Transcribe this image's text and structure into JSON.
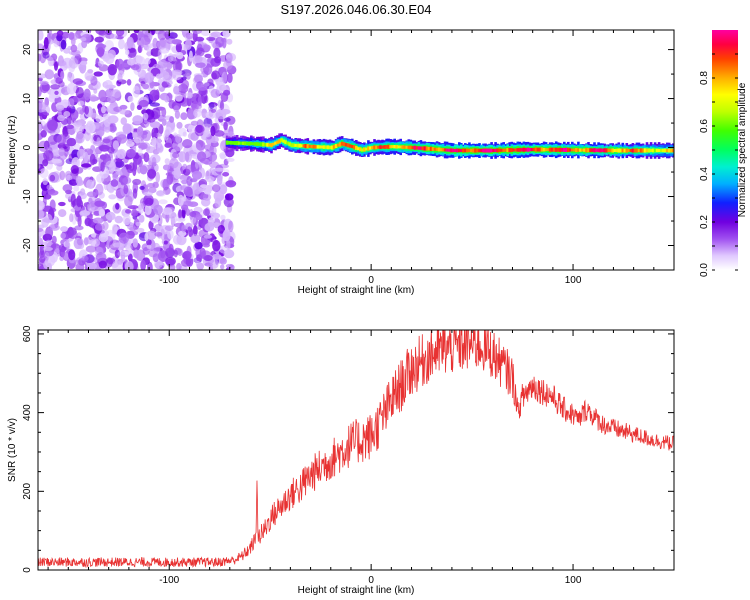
{
  "chart_data": [
    {
      "type": "heatmap",
      "title": "S197.2026.046.06.30.E04",
      "xlabel": "Height of straight line (km)",
      "ylabel": "Frequency (Hz)",
      "xlim": [
        -165,
        150
      ],
      "ylim": [
        -25,
        24
      ],
      "xticks": [
        -100,
        0,
        100
      ],
      "xtick_labels": [
        "-100",
        "0",
        "100"
      ],
      "yticks": [
        -20,
        -10,
        0,
        10,
        20
      ],
      "ytick_labels": [
        "-20",
        "-10",
        "0",
        "10",
        "20"
      ],
      "noise_region_x": [
        -165,
        -72
      ],
      "signal_band": {
        "x_start": -72,
        "x_end": 150,
        "center_freq": [
          [
            -72,
            1.0
          ],
          [
            -60,
            0.8
          ],
          [
            -50,
            0.5
          ],
          [
            -45,
            1.5
          ],
          [
            -40,
            0.5
          ],
          [
            -30,
            0.2
          ],
          [
            -20,
            0.0
          ],
          [
            -15,
            0.8
          ],
          [
            -10,
            0.2
          ],
          [
            -5,
            -0.5
          ],
          [
            0,
            0.0
          ],
          [
            10,
            0.2
          ],
          [
            20,
            0.0
          ],
          [
            30,
            -0.3
          ],
          [
            40,
            -0.6
          ],
          [
            60,
            -0.6
          ],
          [
            80,
            -0.4
          ],
          [
            100,
            -0.5
          ],
          [
            120,
            -0.6
          ],
          [
            150,
            -0.6
          ]
        ],
        "amplitude": [
          [
            -72,
            0.45
          ],
          [
            -60,
            0.6
          ],
          [
            -40,
            0.75
          ],
          [
            -20,
            0.8
          ],
          [
            0,
            0.8
          ],
          [
            20,
            0.85
          ],
          [
            40,
            0.92
          ],
          [
            60,
            0.92
          ],
          [
            80,
            0.9
          ],
          [
            100,
            0.88
          ],
          [
            120,
            0.85
          ],
          [
            150,
            0.7
          ]
        ]
      },
      "colorbar": {
        "label": "Normalized spectral amplitude",
        "range": [
          0,
          1
        ],
        "ticks": [
          0.0,
          0.2,
          0.4,
          0.6,
          0.8
        ],
        "tick_labels": [
          "0.0",
          "0.2",
          "0.4",
          "0.6",
          "0.8"
        ]
      }
    },
    {
      "type": "line",
      "xlabel": "Height of straight line (km)",
      "ylabel": "SNR (10 * v/v)",
      "xlim": [
        -165,
        150
      ],
      "ylim": [
        0,
        610
      ],
      "xticks": [
        -100,
        0,
        100
      ],
      "xtick_labels": [
        "-100",
        "0",
        "100"
      ],
      "yticks": [
        0,
        200,
        400,
        600
      ],
      "ytick_labels": [
        "0",
        "200",
        "400",
        "600"
      ],
      "color": "#e83232",
      "series": [
        {
          "name": "SNR",
          "x": [
            -165,
            -150,
            -130,
            -110,
            -90,
            -75,
            -68,
            -64,
            -60,
            -57,
            -56.5,
            -56,
            -53,
            -50,
            -45,
            -40,
            -35,
            -30,
            -25,
            -20,
            -15,
            -10,
            -5,
            0,
            5,
            10,
            15,
            20,
            25,
            30,
            35,
            40,
            45,
            50,
            55,
            60,
            65,
            70,
            73,
            75,
            80,
            85,
            90,
            95,
            100,
            103,
            105,
            107,
            110,
            115,
            120,
            130,
            140,
            150
          ],
          "values": [
            20,
            20,
            20,
            20,
            20,
            20,
            25,
            35,
            55,
            80,
            250,
            80,
            100,
            130,
            160,
            190,
            210,
            240,
            260,
            280,
            300,
            320,
            330,
            340,
            380,
            430,
            470,
            510,
            530,
            550,
            560,
            565,
            570,
            575,
            570,
            550,
            520,
            490,
            400,
            440,
            470,
            455,
            440,
            410,
            395,
            380,
            400,
            410,
            390,
            370,
            360,
            345,
            330,
            320
          ],
          "noise_amplitude": [
            12,
            12,
            12,
            12,
            12,
            12,
            12,
            14,
            18,
            22,
            8,
            25,
            28,
            32,
            36,
            40,
            44,
            48,
            50,
            52,
            55,
            58,
            60,
            62,
            64,
            66,
            68,
            70,
            70,
            70,
            70,
            70,
            70,
            70,
            68,
            66,
            60,
            55,
            20,
            40,
            38,
            36,
            34,
            32,
            30,
            25,
            30,
            30,
            28,
            26,
            25,
            22,
            20,
            20
          ]
        }
      ]
    }
  ]
}
